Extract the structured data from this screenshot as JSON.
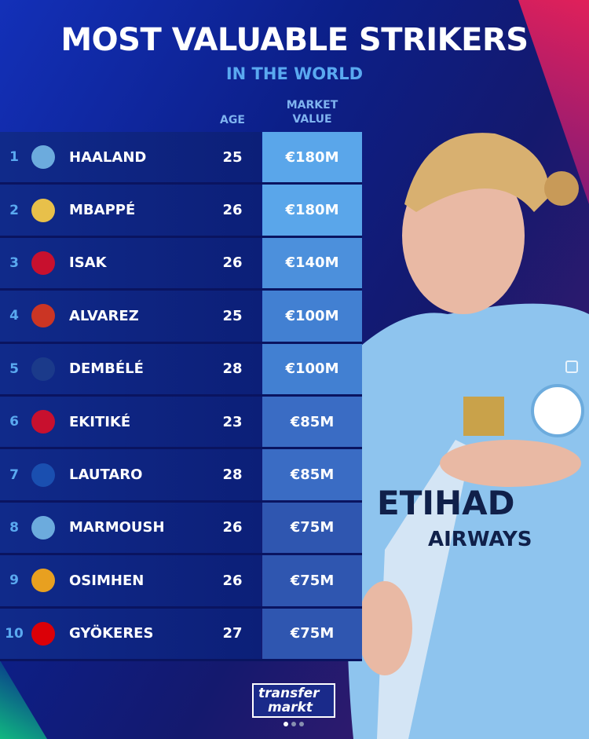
{
  "title": "MOST VALUABLE STRIKERS",
  "subtitle": "IN THE WORLD",
  "headers": {
    "age": "AGE",
    "market_value_line1": "MARKET",
    "market_value_line2": "VALUE"
  },
  "rows": [
    {
      "rank": "1",
      "club_icon": "manchester-city-crest",
      "crest_color": "#6cabdd",
      "name": "HAALAND",
      "age": "25",
      "value": "€180M",
      "value_color": "#5aa6ea"
    },
    {
      "rank": "2",
      "club_icon": "real-madrid-crest",
      "crest_color": "#e8c04a",
      "name": "MBAPPÉ",
      "age": "26",
      "value": "€180M",
      "value_color": "#5aa6ea"
    },
    {
      "rank": "3",
      "club_icon": "liverpool-crest",
      "crest_color": "#c8102e",
      "name": "ISAK",
      "age": "26",
      "value": "€140M",
      "value_color": "#4c90dc"
    },
    {
      "rank": "4",
      "club_icon": "atletico-madrid-crest",
      "crest_color": "#cb3524",
      "name": "ALVAREZ",
      "age": "25",
      "value": "€100M",
      "value_color": "#4280d2"
    },
    {
      "rank": "5",
      "club_icon": "psg-crest",
      "crest_color": "#1b3a8a",
      "name": "DEMBÉLÉ",
      "age": "28",
      "value": "€100M",
      "value_color": "#4280d2"
    },
    {
      "rank": "6",
      "club_icon": "liverpool-crest",
      "crest_color": "#c8102e",
      "name": "EKITIKÉ",
      "age": "23",
      "value": "€85M",
      "value_color": "#3a6cc4"
    },
    {
      "rank": "7",
      "club_icon": "inter-crest",
      "crest_color": "#1a4fb0",
      "name": "LAUTARO",
      "age": "28",
      "value": "€85M",
      "value_color": "#3a6cc4"
    },
    {
      "rank": "8",
      "club_icon": "manchester-city-crest",
      "crest_color": "#6cabdd",
      "name": "MARMOUSH",
      "age": "26",
      "value": "€75M",
      "value_color": "#2f56b0"
    },
    {
      "rank": "9",
      "club_icon": "galatasaray-crest",
      "crest_color": "#e8a020",
      "name": "OSIMHEN",
      "age": "26",
      "value": "€75M",
      "value_color": "#2f56b0"
    },
    {
      "rank": "10",
      "club_icon": "arsenal-crest",
      "crest_color": "#db0007",
      "name": "GYÖKERES",
      "age": "27",
      "value": "€75M",
      "value_color": "#2f56b0"
    }
  ],
  "brand": {
    "line1": "transfer",
    "line2": "markt"
  },
  "carousel": {
    "current": 1,
    "total": 3
  }
}
